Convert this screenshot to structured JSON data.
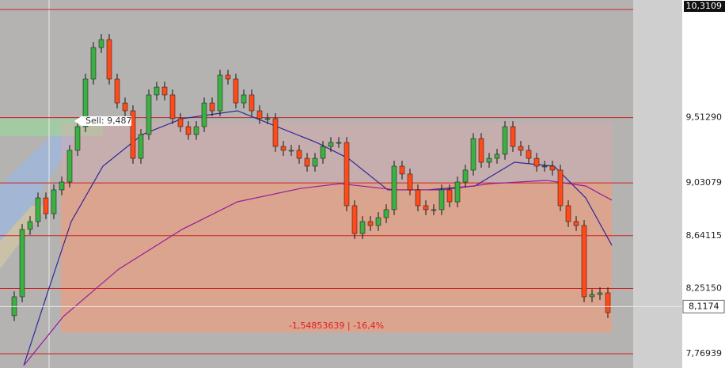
{
  "chart_data": {
    "type": "candlestick",
    "open": [
      8.05,
      8.19,
      8.687,
      8.745,
      8.92,
      8.803,
      8.979,
      9.037,
      9.271,
      9.446,
      9.797,
      10.03,
      10.089,
      9.797,
      9.621,
      9.563,
      9.212,
      9.388,
      9.68,
      9.738,
      9.68,
      9.505,
      9.446,
      9.388,
      9.446,
      9.621,
      9.563,
      9.826,
      9.797,
      9.621,
      9.68,
      9.563,
      9.505,
      9.505,
      9.3,
      9.271,
      9.271,
      9.212,
      9.154,
      9.212,
      9.3,
      9.329,
      9.329,
      8.862,
      8.657,
      8.745,
      8.716,
      8.774,
      8.833,
      9.154,
      9.096,
      8.979,
      8.862,
      8.833,
      8.833,
      8.979,
      8.891,
      9.037,
      9.125,
      9.358,
      9.183,
      9.212,
      9.242,
      9.446,
      9.3,
      9.271,
      9.212,
      9.154,
      9.154,
      9.125,
      8.862,
      8.745,
      8.716,
      8.19,
      8.207,
      8.219
    ],
    "high": [
      8.23,
      8.727,
      8.785,
      8.96,
      8.96,
      9.019,
      9.077,
      9.311,
      9.486,
      9.837,
      10.07,
      10.129,
      10.129,
      9.837,
      9.661,
      9.603,
      9.428,
      9.72,
      9.778,
      9.778,
      9.72,
      9.545,
      9.486,
      9.486,
      9.661,
      9.661,
      9.866,
      9.866,
      9.837,
      9.72,
      9.72,
      9.603,
      9.545,
      9.545,
      9.34,
      9.311,
      9.311,
      9.252,
      9.252,
      9.34,
      9.369,
      9.369,
      9.369,
      8.902,
      8.785,
      8.785,
      8.814,
      8.873,
      9.194,
      9.194,
      9.136,
      9.019,
      8.902,
      8.873,
      9.019,
      9.019,
      9.077,
      9.165,
      9.398,
      9.398,
      9.252,
      9.282,
      9.486,
      9.486,
      9.34,
      9.311,
      9.252,
      9.194,
      9.194,
      9.165,
      8.902,
      8.785,
      8.756,
      8.247,
      8.259,
      8.259
    ],
    "low": [
      8.01,
      8.15,
      8.647,
      8.705,
      8.763,
      8.763,
      8.939,
      8.997,
      9.231,
      9.406,
      9.757,
      9.99,
      9.757,
      9.581,
      9.523,
      9.172,
      9.172,
      9.348,
      9.64,
      9.64,
      9.465,
      9.406,
      9.348,
      9.348,
      9.406,
      9.523,
      9.523,
      9.757,
      9.581,
      9.581,
      9.523,
      9.465,
      9.465,
      9.26,
      9.231,
      9.231,
      9.172,
      9.114,
      9.114,
      9.172,
      9.26,
      9.289,
      8.822,
      8.617,
      8.617,
      8.676,
      8.676,
      8.734,
      8.793,
      9.056,
      8.939,
      8.822,
      8.793,
      8.793,
      8.793,
      8.851,
      8.851,
      8.997,
      9.085,
      9.143,
      9.143,
      9.172,
      9.202,
      9.26,
      9.231,
      9.172,
      9.114,
      9.114,
      9.085,
      8.822,
      8.705,
      8.676,
      8.15,
      8.15,
      8.167,
      8.033
    ],
    "close": [
      8.19,
      8.687,
      8.745,
      8.92,
      8.803,
      8.979,
      9.037,
      9.271,
      9.446,
      9.797,
      10.03,
      10.089,
      9.797,
      9.621,
      9.563,
      9.212,
      9.388,
      9.68,
      9.738,
      9.68,
      9.505,
      9.446,
      9.388,
      9.446,
      9.621,
      9.563,
      9.826,
      9.797,
      9.621,
      9.68,
      9.563,
      9.505,
      9.505,
      9.3,
      9.271,
      9.271,
      9.212,
      9.154,
      9.212,
      9.3,
      9.329,
      9.329,
      8.862,
      8.657,
      8.745,
      8.716,
      8.774,
      8.833,
      9.154,
      9.096,
      8.979,
      8.862,
      8.833,
      8.833,
      8.979,
      8.891,
      9.037,
      9.125,
      9.358,
      9.183,
      9.212,
      9.242,
      9.446,
      9.3,
      9.271,
      9.212,
      9.154,
      9.154,
      9.125,
      8.862,
      8.745,
      8.716,
      8.19,
      8.207,
      8.219,
      8.073
    ],
    "up_color": "#3cb043",
    "down_color": "#ff4a1a",
    "lines": [
      {
        "color": "#2a2a9a",
        "x": [
          1.2,
          4.2,
          7.2,
          11.2,
          16.2,
          21.2,
          28.2,
          33.2,
          38.2,
          42.2,
          47.2,
          52.2,
          58.2,
          63.2,
          68.2,
          72.2,
          75.5
        ],
        "values": [
          7.682,
          8.219,
          8.745,
          9.154,
          9.388,
          9.505,
          9.563,
          9.446,
          9.329,
          9.212,
          8.979,
          8.979,
          9.008,
          9.183,
          9.154,
          8.92,
          8.57
        ]
      },
      {
        "color": "#9a1a9a",
        "x": [
          1.2,
          6.2,
          13.2,
          21.2,
          28.2,
          36.2,
          41.2,
          48.2,
          54.2,
          60.2,
          67.2,
          72.2,
          75.5
        ],
        "values": [
          7.682,
          8.044,
          8.394,
          8.687,
          8.891,
          8.99,
          9.025,
          8.979,
          8.979,
          9.025,
          9.049,
          9.008,
          8.903
        ]
      }
    ],
    "ylim": [
      7.664,
      10.381
    ],
    "yticks": [
      {
        "value": 10.3109,
        "label": "10,3109"
      },
      {
        "value": 9.5129,
        "label": "9,51290"
      },
      {
        "value": 9.03079,
        "label": "9,03079"
      },
      {
        "value": 8.64115,
        "label": "8,64115"
      },
      {
        "value": 8.2515,
        "label": "8,25150"
      },
      {
        "value": 7.76939,
        "label": "7,76939"
      }
    ],
    "grid": true,
    "grid_color": "#cc2020",
    "current_price": {
      "value": 8.1174,
      "label": "8,1174"
    },
    "annotations": [
      {
        "text": "Sell: 9,487",
        "value": 9.487
      },
      {
        "text": "-1,54853639 | -16,4%"
      }
    ]
  }
}
